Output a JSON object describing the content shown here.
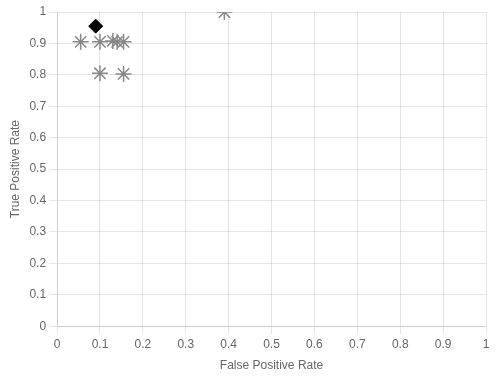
{
  "chart_data": {
    "type": "scatter",
    "xlabel": "False Positive Rate",
    "ylabel": "True Positive Rate",
    "xlim": [
      0,
      1
    ],
    "ylim": [
      0,
      1
    ],
    "xticks": [
      0,
      0.1,
      0.2,
      0.3,
      0.4,
      0.5,
      0.6,
      0.7,
      0.8,
      0.9,
      1
    ],
    "yticks": [
      0,
      0.1,
      0.2,
      0.3,
      0.4,
      0.5,
      0.6,
      0.7,
      0.8,
      0.9,
      1
    ],
    "grid": true,
    "series": [
      {
        "x": [
          0.055,
          0.1,
          0.13,
          0.155,
          0.14,
          0.1,
          0.155,
          0.39
        ],
        "values": [
          0.905,
          0.905,
          0.908,
          0.905,
          0.905,
          0.805,
          0.803,
          1.0
        ],
        "color": "#888888",
        "marker": "asterisk"
      },
      {
        "x": [
          0.09
        ],
        "values": [
          0.955
        ],
        "color": "#000000",
        "marker": "diamond"
      }
    ]
  }
}
